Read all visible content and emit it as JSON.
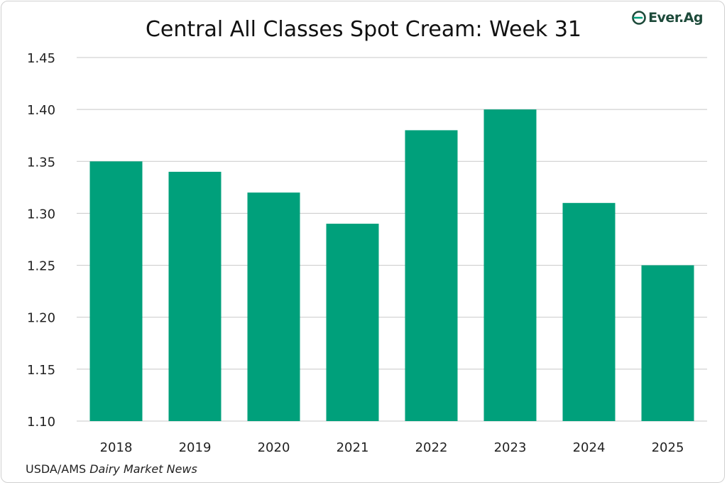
{
  "brand": {
    "logo_text": "Ever.Ag",
    "accent": "#00a07b",
    "logo_color": "#1d4a3a"
  },
  "source": {
    "prefix": "USDA/AMS ",
    "publication": "Dairy Market News"
  },
  "chart_data": {
    "type": "bar",
    "title": "Central All Classes Spot Cream: Week 31",
    "xlabel": "",
    "ylabel": "",
    "categories": [
      "2018",
      "2019",
      "2020",
      "2021",
      "2022",
      "2023",
      "2024",
      "2025"
    ],
    "values": [
      1.35,
      1.34,
      1.32,
      1.29,
      1.38,
      1.4,
      1.31,
      1.25
    ],
    "ylim": [
      1.1,
      1.45
    ],
    "yticks": [
      "1.10",
      "1.15",
      "1.20",
      "1.25",
      "1.30",
      "1.35",
      "1.40",
      "1.45"
    ],
    "grid": true,
    "legend": "none",
    "bar_color": "#00a07b"
  }
}
